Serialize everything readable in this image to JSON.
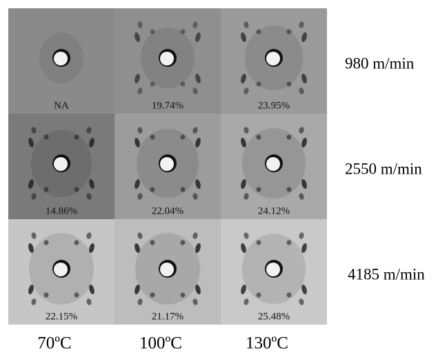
{
  "rows": [
    {
      "label": "980 m/min",
      "cells": [
        "NA",
        "19.74%",
        "23.95%"
      ]
    },
    {
      "label": "2550 m/min",
      "cells": [
        "14.86%",
        "22.04%",
        "24.12%"
      ]
    },
    {
      "label": "4185 m/min",
      "cells": [
        "22.15%",
        "21.17%",
        "25.48%"
      ]
    }
  ],
  "columns": [
    "70ºC",
    "100ºC",
    "130ºC"
  ]
}
